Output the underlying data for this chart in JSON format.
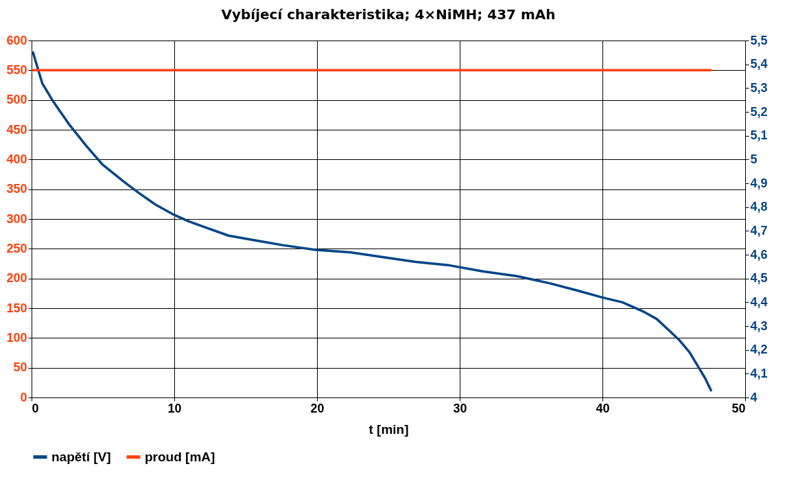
{
  "chart_data": {
    "type": "line",
    "title": "Vybíjecí charakteristika; 4×NiMH; 437 mAh",
    "xlabel": "t [min]",
    "xlim": [
      0,
      50
    ],
    "xticks": [
      0,
      10,
      20,
      30,
      40,
      50
    ],
    "ylim": [
      0,
      600
    ],
    "yticks": [
      0,
      50,
      100,
      150,
      200,
      250,
      300,
      350,
      400,
      450,
      500,
      550,
      600
    ],
    "y2lim": [
      4,
      5.5
    ],
    "y2ticks": [
      4,
      {
        "value": 4.1,
        "label": "4,1"
      },
      {
        "value": 4.2,
        "label": "4,2"
      },
      {
        "value": 4.3,
        "label": "4,3"
      },
      {
        "value": 4.4,
        "label": "4,4"
      },
      {
        "value": 4.5,
        "label": "4,5"
      },
      {
        "value": 4.6,
        "label": "4,6"
      },
      {
        "value": 4.7,
        "label": "4,7"
      },
      {
        "value": 4.8,
        "label": "4,8"
      },
      {
        "value": 4.9,
        "label": "4,9"
      },
      5,
      {
        "value": 5.1,
        "label": "5,1"
      },
      {
        "value": 5.2,
        "label": "5,2"
      },
      {
        "value": 5.3,
        "label": "5,3"
      },
      {
        "value": 5.4,
        "label": "5,4"
      },
      {
        "value": 5.5,
        "label": "5,5"
      }
    ],
    "grid": true,
    "legend": "bottom",
    "series": [
      {
        "name": "napětí [V]",
        "color": "#004586",
        "axis": "y2",
        "x": [
          0.1,
          0.75,
          1.45,
          2.6,
          3.8,
          4.95,
          6.4,
          7.5,
          8.7,
          9.9,
          11.0,
          12.4,
          13.8,
          15.7,
          17.6,
          19.9,
          22.3,
          24.6,
          26.9,
          29.3,
          31.6,
          34.0,
          36.3,
          38.2,
          40.0,
          41.4,
          42.9,
          43.8,
          44.7,
          45.4,
          46.1,
          46.7,
          47.2,
          47.6
        ],
        "values": [
          5.45,
          5.32,
          5.25,
          5.15,
          5.06,
          4.98,
          4.91,
          4.86,
          4.81,
          4.77,
          4.74,
          4.71,
          4.68,
          4.66,
          4.64,
          4.62,
          4.61,
          4.59,
          4.57,
          4.555,
          4.53,
          4.51,
          4.48,
          4.45,
          4.42,
          4.4,
          4.36,
          4.33,
          4.28,
          4.24,
          4.19,
          4.13,
          4.08,
          4.03
        ]
      },
      {
        "name": "proud [mA]",
        "color": "#ff420e",
        "x": [
          0.1,
          47.6
        ],
        "values": [
          550,
          550
        ]
      }
    ]
  }
}
